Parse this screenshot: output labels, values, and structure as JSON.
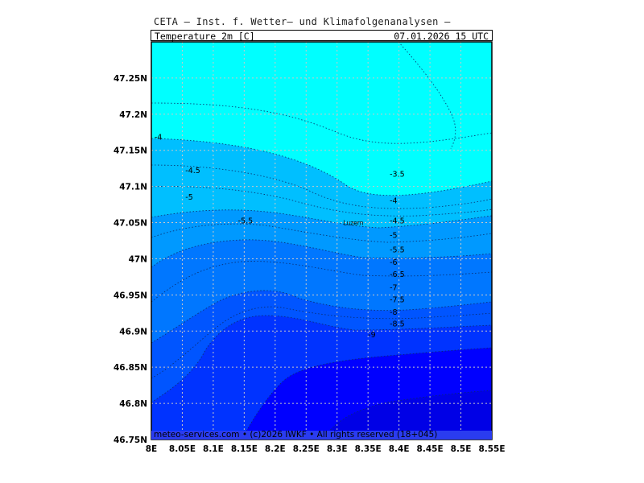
{
  "header": {
    "title": "CETA — Inst. f. Wetter— und Klimafolgenanalysen —",
    "parameter": "Temperature_2m_[C]",
    "valid_time": "07.01.2026  15 UTC"
  },
  "map": {
    "lon_range": [
      8.0,
      8.55
    ],
    "lat_range": [
      46.75,
      47.3
    ],
    "x_ticks": [
      "8E",
      "8.05E",
      "8.1E",
      "8.15E",
      "8.2E",
      "8.25E",
      "8.3E",
      "8.35E",
      "8.4E",
      "8.45E",
      "8.5E",
      "8.55E"
    ],
    "y_ticks": [
      "47.25N",
      "47.2N",
      "47.15N",
      "47.1N",
      "47.05N",
      "47N",
      "46.95N",
      "46.9N",
      "46.85N",
      "46.8N",
      "46.75N"
    ],
    "grid": true,
    "colors": {
      "band_gt_-4": "#00ffff",
      "band_-4_-5": "#00bfff",
      "band_-5_-6": "#0099ff",
      "band_-6_-7": "#0077ff",
      "band_-7_-8": "#0055ff",
      "band_-8_-9": "#0033ff",
      "band_lt_-9": "#0000ff"
    },
    "contour_labels": [
      {
        "text": "-4",
        "lon": 8.005,
        "lat": 47.168
      },
      {
        "text": "-4.5",
        "lon": 8.055,
        "lat": 47.122
      },
      {
        "text": "-5",
        "lon": 8.055,
        "lat": 47.085
      },
      {
        "text": "-5.5",
        "lon": 8.14,
        "lat": 47.052
      },
      {
        "text": "-3.5",
        "lon": 8.385,
        "lat": 47.117
      },
      {
        "text": "-4",
        "lon": 8.385,
        "lat": 47.08
      },
      {
        "text": "-4.5",
        "lon": 8.385,
        "lat": 47.052
      },
      {
        "text": "-5",
        "lon": 8.385,
        "lat": 47.032
      },
      {
        "text": "-5.5",
        "lon": 8.385,
        "lat": 47.012
      },
      {
        "text": "-6",
        "lon": 8.385,
        "lat": 46.995
      },
      {
        "text": "-6.5",
        "lon": 8.385,
        "lat": 46.978
      },
      {
        "text": "-7",
        "lon": 8.385,
        "lat": 46.96
      },
      {
        "text": "-7.5",
        "lon": 8.385,
        "lat": 46.943
      },
      {
        "text": "-8",
        "lon": 8.385,
        "lat": 46.926
      },
      {
        "text": "-8.5",
        "lon": 8.385,
        "lat": 46.91
      },
      {
        "text": "-9",
        "lon": 8.35,
        "lat": 46.895
      }
    ],
    "cities": [
      {
        "name": "Luzern",
        "lon": 8.31,
        "lat": 47.05
      }
    ]
  },
  "footer": {
    "text": "meteo-services.com • (c)2026 IWKF • All rights reserved (18+045)"
  }
}
